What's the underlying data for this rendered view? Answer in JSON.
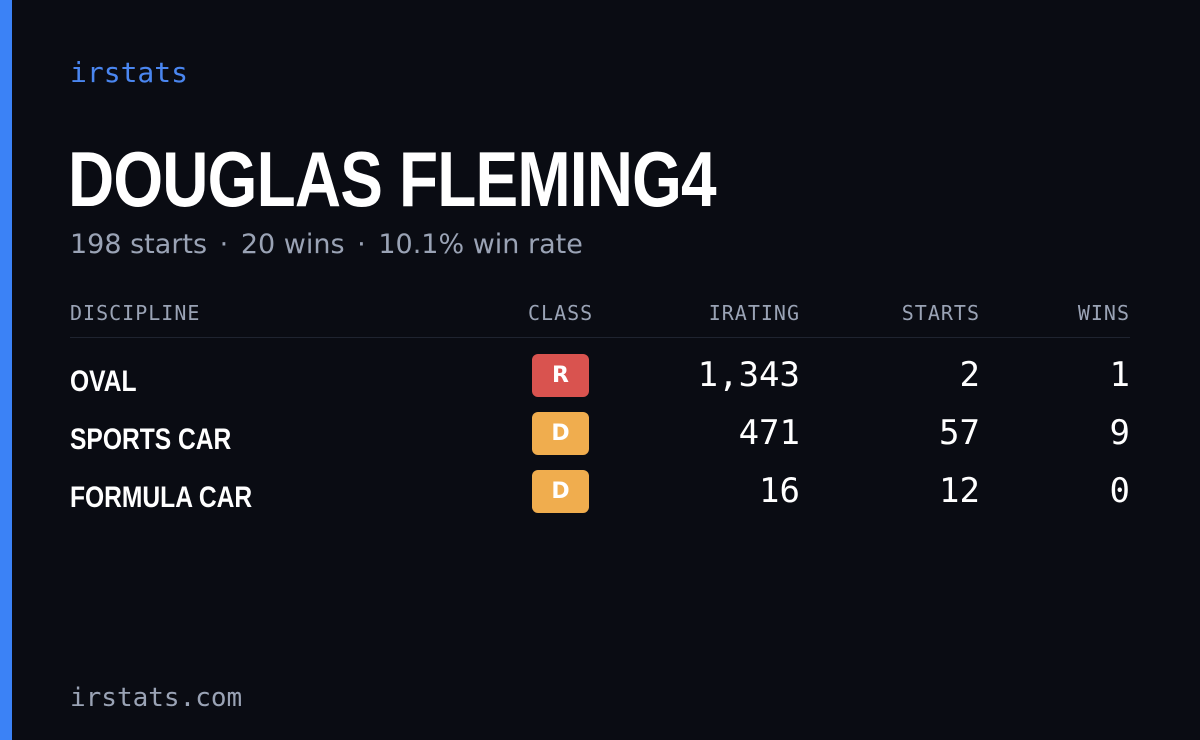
{
  "brand": "irstats",
  "player": {
    "name": "DOUGLAS FLEMING4",
    "starts": "198 starts",
    "wins": "20 wins",
    "win_rate": "10.1% win rate",
    "separator": "·"
  },
  "table": {
    "headers": {
      "discipline": "DISCIPLINE",
      "class": "CLASS",
      "irating": "IRATING",
      "starts": "STARTS",
      "wins": "WINS"
    },
    "rows": [
      {
        "discipline": "OVAL",
        "class": "R",
        "class_color": "#d9534f",
        "irating": "1,343",
        "starts": "2",
        "wins": "1"
      },
      {
        "discipline": "SPORTS CAR",
        "class": "D",
        "class_color": "#f0ad4e",
        "irating": "471",
        "starts": "57",
        "wins": "9"
      },
      {
        "discipline": "FORMULA CAR",
        "class": "D",
        "class_color": "#f0ad4e",
        "irating": "16",
        "starts": "12",
        "wins": "0"
      }
    ]
  },
  "footer": "irstats.com",
  "colors": {
    "background": "#0a0c13",
    "accent": "#3b82f6",
    "muted_text": "#9aa3b5",
    "class_r": "#d9534f",
    "class_d": "#f0ad4e"
  }
}
